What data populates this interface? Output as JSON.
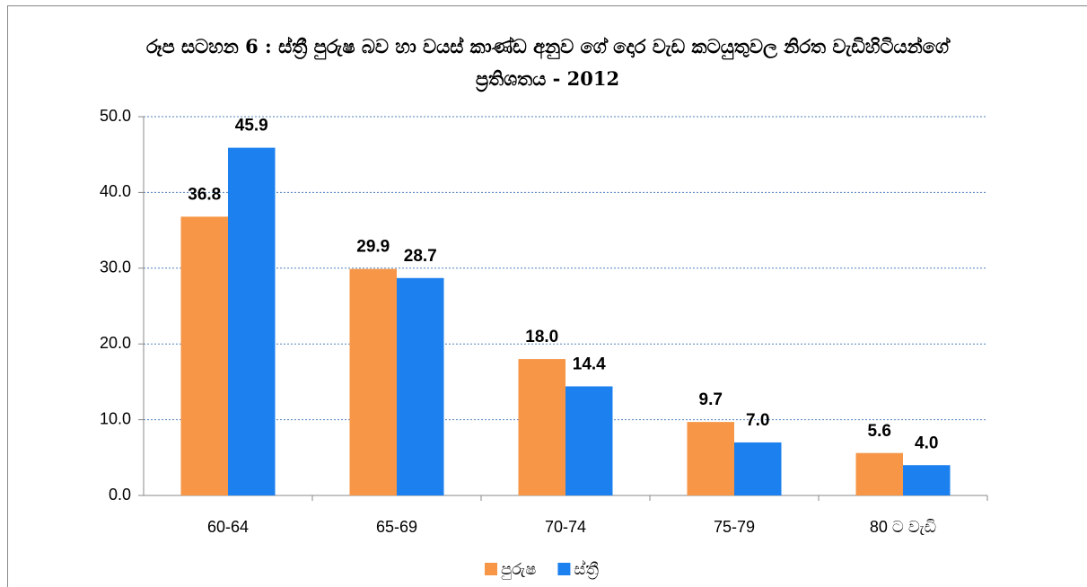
{
  "chart_data": {
    "type": "bar",
    "title": "රූප සටහන 6 : ස්ත්‍රී පුරුෂ බව හා වයස් කාණ්ඩ අනුව ගේ දොර වැඩ කටයුතුවල නිරත වැඩිහිටියන්ගේ ප්‍රතිශතය - 2012",
    "categories": [
      "60-64",
      "65-69",
      "70-74",
      "75-79",
      "80 ට වැඩි"
    ],
    "series": [
      {
        "name": "පුරුෂ",
        "color": "#F79646",
        "values": [
          36.8,
          29.9,
          18.0,
          9.7,
          5.6
        ],
        "value_labels": [
          "36.8",
          "29.9",
          "18.0",
          "9.7",
          "5.6"
        ]
      },
      {
        "name": "ස්ත්‍රී",
        "color": "#1C80EE",
        "values": [
          45.9,
          28.7,
          14.4,
          7.0,
          4.0
        ],
        "value_labels": [
          "45.9",
          "28.7",
          "14.4",
          "7.0",
          "4.0"
        ]
      }
    ],
    "ylim": [
      0,
      50
    ],
    "yticks": [
      {
        "value": 0,
        "label": "0.0"
      },
      {
        "value": 10,
        "label": "10.0"
      },
      {
        "value": 20,
        "label": "20.0"
      },
      {
        "value": 30,
        "label": "30.0"
      },
      {
        "value": 40,
        "label": "40.0"
      },
      {
        "value": 50,
        "label": "50.0"
      }
    ],
    "grid": true,
    "legend": "bottom"
  }
}
